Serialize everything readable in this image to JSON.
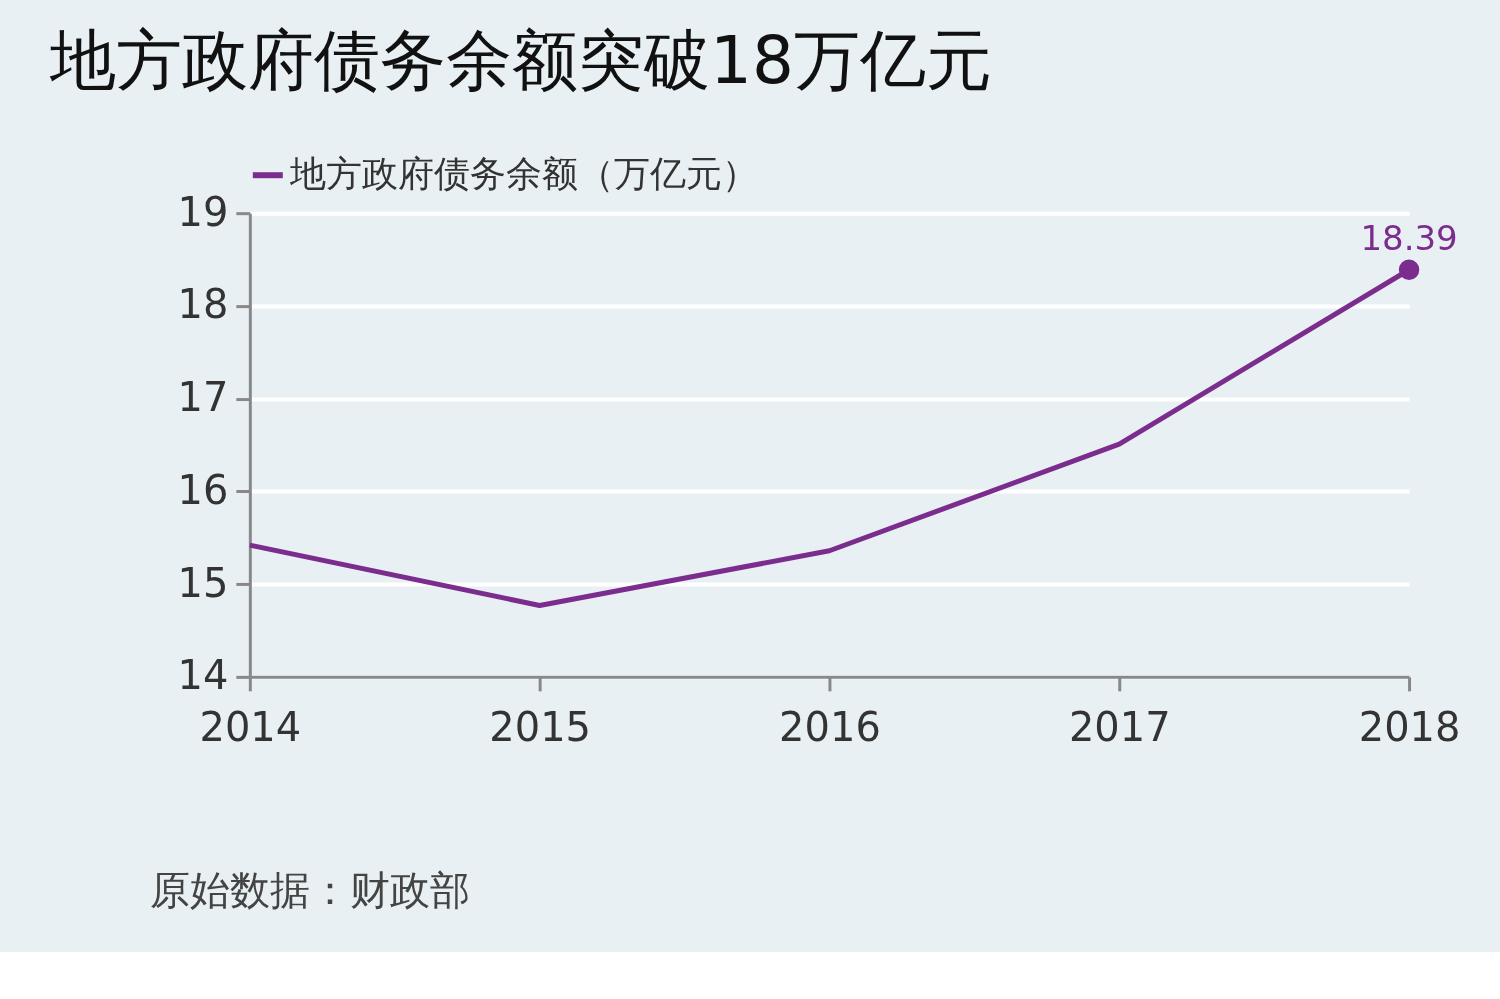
{
  "chart_data": {
    "type": "line",
    "title": "地方政府债务余额突破18万亿元",
    "categories": [
      "2014",
      "2015",
      "2016",
      "2017",
      "2018"
    ],
    "series": [
      {
        "name": "地方政府债务余额（万亿元）",
        "color": "#7b2d8e",
        "values": [
          15.42,
          14.77,
          15.36,
          16.51,
          18.39
        ],
        "value_labels": [
          null,
          null,
          null,
          null,
          "18.39"
        ]
      }
    ],
    "ylim": [
      14,
      19
    ],
    "yticks": [
      14,
      15,
      16,
      17,
      18,
      19
    ],
    "grid": "y",
    "legend": "top left",
    "annotations": [
      "原始数据：财政部"
    ]
  }
}
